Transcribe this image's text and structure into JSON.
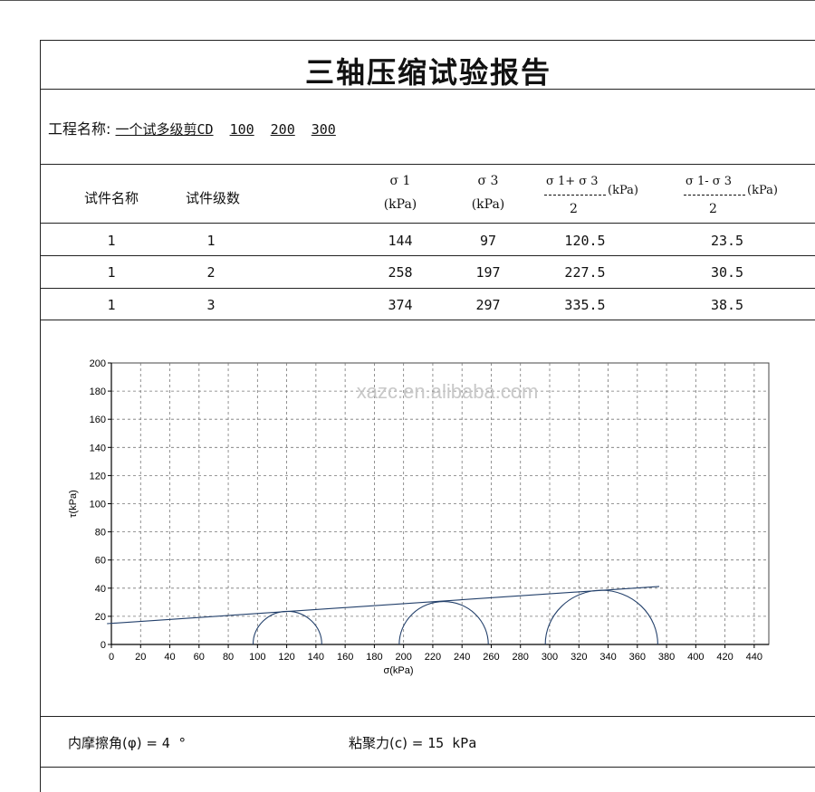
{
  "title": "三轴压缩试验报告",
  "project": {
    "label": "工程名称:",
    "value_parts": [
      "一个试多级剪CD",
      "100",
      "200",
      "300"
    ]
  },
  "table": {
    "headers": {
      "name": "试件名称",
      "level": "试件级数",
      "sigma1": [
        "σ 1",
        "(kPa)"
      ],
      "sigma3": [
        "σ 3",
        "(kPa)"
      ],
      "sum": {
        "num": "σ 1+ σ 3",
        "den": "2",
        "unit": "(kPa)"
      },
      "diff": {
        "num": "σ 1- σ 3",
        "den": "2",
        "unit": "(kPa)"
      }
    },
    "rows": [
      [
        "1",
        "1",
        "144",
        "97",
        "120.5",
        "23.5"
      ],
      [
        "1",
        "2",
        "258",
        "197",
        "227.5",
        "30.5"
      ],
      [
        "1",
        "3",
        "374",
        "297",
        "335.5",
        "38.5"
      ]
    ]
  },
  "chart_data": {
    "type": "line",
    "xlabel": "σ(kPa)",
    "ylabel": "τ(kPa)",
    "xlim": [
      0,
      450
    ],
    "ylim": [
      0,
      200
    ],
    "xticks": [
      0,
      20,
      40,
      60,
      80,
      100,
      120,
      140,
      160,
      180,
      200,
      220,
      240,
      260,
      280,
      300,
      320,
      340,
      360,
      380,
      400,
      420,
      440
    ],
    "yticks": [
      0,
      20,
      40,
      60,
      80,
      100,
      120,
      140,
      160,
      180,
      200
    ],
    "grid": true,
    "mohr_circles": [
      {
        "sigma3": 97,
        "sigma1": 144,
        "center": 120.5,
        "radius": 23.5
      },
      {
        "sigma3": 197,
        "sigma1": 258,
        "center": 227.5,
        "radius": 30.5
      },
      {
        "sigma3": 297,
        "sigma1": 374,
        "center": 335.5,
        "radius": 38.5
      }
    ],
    "envelope": {
      "cohesion": 15,
      "phi_deg": 4,
      "x": [
        -3,
        375
      ]
    },
    "watermark": "xazc.en.alibaba.com"
  },
  "footer": {
    "phi_label": "内摩擦角(φ) =",
    "phi_value": "4 °",
    "c_label": "粘聚力(c) =",
    "c_value": "15 kPa"
  }
}
